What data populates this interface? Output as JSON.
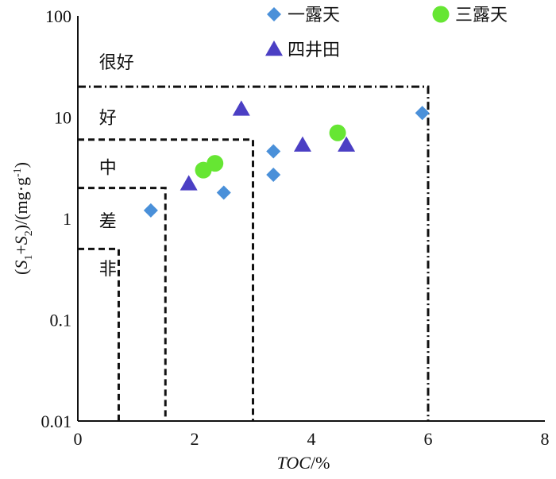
{
  "chart_data": {
    "type": "scatter",
    "x_axis": {
      "title_parts": [
        "TOC",
        "/%"
      ],
      "ticks": [
        0,
        2,
        4,
        6,
        8
      ],
      "tick_labels": [
        "0",
        "2",
        "4",
        "6",
        "8"
      ],
      "range": [
        0,
        8
      ]
    },
    "y_axis": {
      "scale": "log",
      "range": [
        0.01,
        100
      ],
      "ticks": [
        0.01,
        0.1,
        1,
        10,
        100
      ],
      "tick_labels": [
        "0.01",
        "0.1",
        "1",
        "10",
        "100"
      ],
      "title_parts": {
        "open": "(",
        "s": "S",
        "sub1": "1",
        "plus": "+",
        "sub2": "2",
        "rest": ")/(mg·g",
        "sup": "-1",
        "close": ")"
      }
    },
    "grid": false,
    "legend_position": "top-right",
    "series": [
      {
        "name": "一露天",
        "marker": "diamond",
        "color": "#4A90D9",
        "points": [
          [
            1.25,
            1.2
          ],
          [
            2.5,
            1.8
          ],
          [
            3.35,
            2.7
          ],
          [
            3.35,
            4.6
          ],
          [
            5.9,
            11
          ]
        ]
      },
      {
        "name": "三露天",
        "marker": "circle",
        "color": "#66E633",
        "points": [
          [
            2.15,
            3.0
          ],
          [
            2.35,
            3.5
          ],
          [
            4.45,
            7.0
          ]
        ]
      },
      {
        "name": "四井田",
        "marker": "triangle",
        "color": "#4B3FC4",
        "points": [
          [
            1.9,
            2.2
          ],
          [
            2.8,
            12
          ],
          [
            3.85,
            5.3
          ],
          [
            4.6,
            5.3
          ]
        ]
      }
    ],
    "zones": [
      {
        "label": "很好",
        "label_x": 0.5,
        "label_y": 35,
        "boundary_x": 6.0,
        "boundary_y": 20,
        "style": "dashdot"
      },
      {
        "label": "好",
        "label_x": 0.5,
        "label_y": 10,
        "boundary_x": 3.0,
        "boundary_y": 6,
        "style": "dashed"
      },
      {
        "label": "中",
        "label_x": 0.5,
        "label_y": 3.2,
        "boundary_x": 1.5,
        "boundary_y": 2,
        "style": "dashed"
      },
      {
        "label": "差",
        "label_x": 0.5,
        "label_y": 0.95,
        "boundary_x": 0.7,
        "boundary_y": 0.5,
        "style": "dashed"
      },
      {
        "label": "非",
        "label_x": 0.5,
        "label_y": 0.32,
        "boundary_x": null,
        "boundary_y": null,
        "style": "dashed"
      }
    ]
  }
}
